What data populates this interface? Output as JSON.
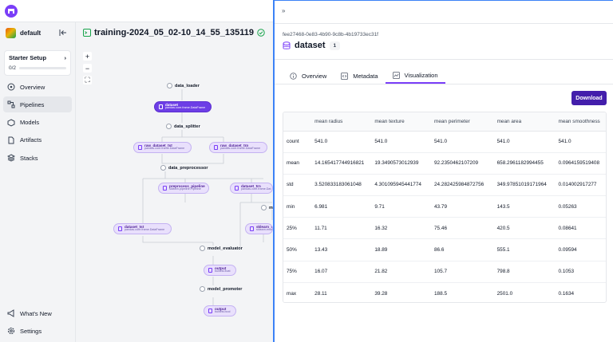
{
  "workspace": {
    "name": "default"
  },
  "starter": {
    "title": "Starter Setup",
    "progress": "0/2",
    "fraction": 0.0
  },
  "nav": {
    "items": [
      {
        "label": "Overview",
        "icon": "overview-icon"
      },
      {
        "label": "Pipelines",
        "icon": "pipeline-icon",
        "active": true
      },
      {
        "label": "Models",
        "icon": "models-icon"
      },
      {
        "label": "Artifacts",
        "icon": "artifacts-icon"
      },
      {
        "label": "Stacks",
        "icon": "stacks-icon"
      }
    ],
    "bottom": [
      {
        "label": "What's New",
        "icon": "megaphone-icon"
      },
      {
        "label": "Settings",
        "icon": "gear-icon"
      }
    ]
  },
  "run": {
    "name": "training-2024_05_02-10_14_55_135119",
    "status": "completed"
  },
  "dag": {
    "steps": {
      "data_loader": "data_loader",
      "data_splitter": "data_splitter",
      "data_preprocessor": "data_preprocessor",
      "model_evaluator": "model_evaluator",
      "model_promoter": "model_promoter",
      "model_trainer": "m"
    },
    "artifacts": {
      "dataset": {
        "name": "dataset",
        "type": "pandas.core.frame.DataFrame"
      },
      "raw_dataset_tst": {
        "name": "raw_dataset_tst",
        "type": "pandas.core.frame.DataFrame"
      },
      "raw_dataset_trn": {
        "name": "raw_dataset_trn",
        "type": "pandas.core.frame.DataFrame"
      },
      "preprocess_pipeline": {
        "name": "preprocess_pipeline",
        "type": "sklearn.pipeline.Pipeline"
      },
      "dataset_trn": {
        "name": "dataset_trn",
        "type": "pandas.core.frame.Dat"
      },
      "dataset_tst": {
        "name": "dataset_tst",
        "type": "pandas.core.frame.DataFrame"
      },
      "sklearn_cla": {
        "name": "sklearn_cla",
        "type": "sklearn.ensem"
      },
      "output1": {
        "name": "output",
        "type": "builtins.float"
      },
      "output2": {
        "name": "output",
        "type": "builtins.bool"
      }
    }
  },
  "panel": {
    "artifact_id": "fee27468-0e83-4b90-9c8b-4b19733ec31f",
    "artifact_name": "dataset",
    "version": "1",
    "tabs": [
      {
        "label": "Overview",
        "icon": "info-icon"
      },
      {
        "label": "Metadata",
        "icon": "code-icon"
      },
      {
        "label": "Visualization",
        "icon": "chart-icon",
        "active": true
      }
    ],
    "download_label": "Download"
  },
  "stats_table": {
    "columns": [
      "",
      "mean radius",
      "mean texture",
      "mean perimeter",
      "mean area",
      "mean smoothness"
    ],
    "rows": [
      [
        "count",
        "541.0",
        "541.0",
        "541.0",
        "541.0",
        "541.0"
      ],
      [
        "mean",
        "14.165417744916821",
        "19.3490573012939",
        "92.2350462107209",
        "658.2961182994455",
        "0.0964159519408"
      ],
      [
        "std",
        "3.520833183061048",
        "4.301095945441774",
        "24.282425984872756",
        "349.97851019171964",
        "0.014002917277"
      ],
      [
        "min",
        "6.981",
        "9.71",
        "43.79",
        "143.5",
        "0.05263"
      ],
      [
        "25%",
        "11.71",
        "16.32",
        "75.46",
        "420.5",
        "0.08641"
      ],
      [
        "50%",
        "13.43",
        "18.89",
        "86.6",
        "555.1",
        "0.09594"
      ],
      [
        "75%",
        "16.07",
        "21.82",
        "105.7",
        "798.8",
        "0.1053"
      ],
      [
        "max",
        "28.11",
        "39.28",
        "188.5",
        "2501.0",
        "0.1634"
      ]
    ]
  }
}
